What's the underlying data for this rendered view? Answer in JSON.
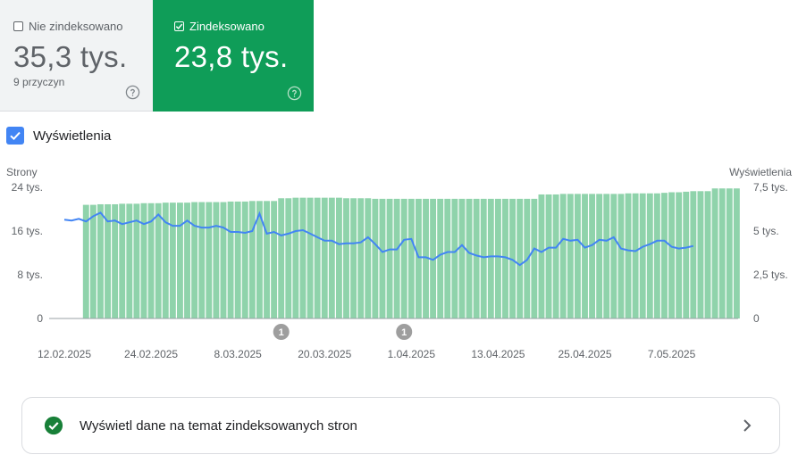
{
  "cards": {
    "nonindexed": {
      "label": "Nie zindeksowano",
      "value": "35,3 tys.",
      "subtext": "9 przyczyn",
      "checked": false
    },
    "indexed": {
      "label": "Zindeksowano",
      "value": "23,8 tys.",
      "checked": true,
      "color": "#0f9d58"
    }
  },
  "metric_toggle": {
    "label": "Wyświetlenia",
    "checked": true,
    "color": "#4285f4"
  },
  "chart_data": {
    "type": "bar+line",
    "left_axis": {
      "label": "Strony",
      "ticks": [
        "24 tys.",
        "16 tys.",
        "8 tys.",
        "0"
      ],
      "range": [
        0,
        24000
      ]
    },
    "right_axis": {
      "label": "Wyświetlenia",
      "ticks": [
        "7,5 tys.",
        "5 tys.",
        "2,5 tys.",
        "0"
      ],
      "range": [
        0,
        7500
      ]
    },
    "x_ticks": [
      "12.02.2025",
      "24.02.2025",
      "8.03.2025",
      "20.03.2025",
      "1.04.2025",
      "13.04.2025",
      "25.04.2025",
      "7.05.2025"
    ],
    "start_offset_days": 0,
    "annotations": [
      {
        "day": 30,
        "label": "1"
      },
      {
        "day": 47,
        "label": "1"
      }
    ],
    "bar_color": "#8fd3ab",
    "line_color": "#4285f4",
    "series": [
      {
        "name": "Zindeksowano",
        "kind": "bar",
        "start_day": 3,
        "values": [
          20800,
          20800,
          20900,
          20900,
          20900,
          21000,
          21000,
          21000,
          21100,
          21100,
          21100,
          21200,
          21200,
          21200,
          21200,
          21300,
          21300,
          21300,
          21300,
          21300,
          21400,
          21400,
          21400,
          21500,
          21500,
          21500,
          21500,
          22000,
          22000,
          22100,
          22100,
          22100,
          22100,
          22100,
          22100,
          22100,
          22000,
          22000,
          22000,
          22000,
          21900,
          21900,
          21900,
          21900,
          21900,
          21900,
          21900,
          21900,
          21900,
          21900,
          21900,
          21900,
          21900,
          21900,
          21900,
          21900,
          21900,
          21900,
          21900,
          21900,
          21900,
          21900,
          21900,
          22700,
          22700,
          22700,
          22800,
          22800,
          22800,
          22800,
          22800,
          22800,
          22800,
          22800,
          22800,
          22900,
          22900,
          22900,
          22900,
          22900,
          23000,
          23100,
          23100,
          23200,
          23300,
          23300,
          23300,
          23800,
          23800,
          23800,
          23800
        ]
      },
      {
        "name": "Wyświetlenia",
        "kind": "line",
        "start_day": 0,
        "values": [
          5650,
          5600,
          5700,
          5550,
          5850,
          6050,
          5550,
          5600,
          5400,
          5500,
          5600,
          5400,
          5550,
          5950,
          5500,
          5300,
          5300,
          5600,
          5300,
          5200,
          5200,
          5300,
          5200,
          4950,
          4950,
          4900,
          5000,
          6000,
          4850,
          4950,
          4750,
          4850,
          5000,
          5050,
          4850,
          4650,
          4450,
          4450,
          4250,
          4300,
          4300,
          4350,
          4650,
          4250,
          3800,
          3950,
          3950,
          4500,
          4550,
          3500,
          3500,
          3350,
          3650,
          3800,
          3800,
          4200,
          3750,
          3600,
          3500,
          3550,
          3550,
          3500,
          3350,
          3050,
          3350,
          4000,
          3800,
          4050,
          4050,
          4550,
          4450,
          4500,
          4050,
          4200,
          4500,
          4450,
          4650,
          4000,
          3900,
          3850,
          4100,
          4250,
          4450,
          4450,
          4100,
          4000,
          4050,
          4150
        ]
      }
    ]
  },
  "details_link": {
    "label": "Wyświetl dane na temat zindeksowanych stron"
  }
}
